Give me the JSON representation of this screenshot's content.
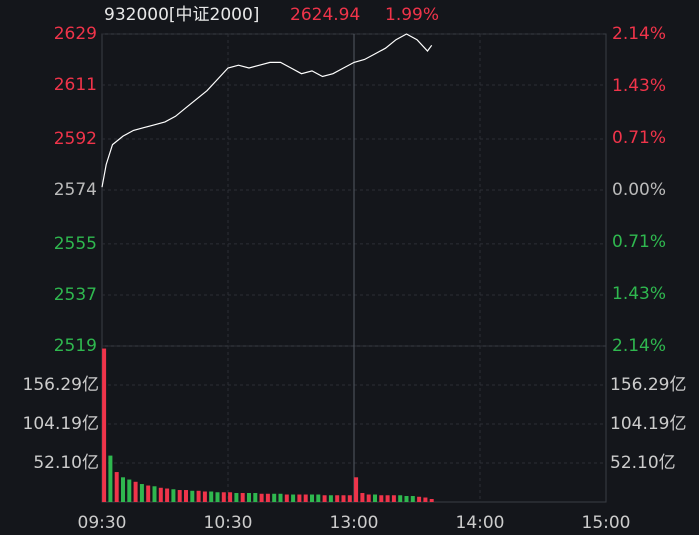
{
  "chart_data": [
    {
      "type": "line",
      "title": "932000[中证2000]",
      "last": 2624.94,
      "change": {
        "value": 1.99,
        "label": "1.99%"
      },
      "up_color": "#f0344a",
      "down_color": "#2fb84f",
      "flat_color": "#bbbbbb",
      "x": [
        0,
        2,
        5,
        10,
        15,
        20,
        25,
        30,
        35,
        40,
        45,
        50,
        55,
        60,
        65,
        70,
        75,
        80,
        85,
        90,
        95,
        100,
        105,
        110,
        115,
        120,
        125,
        130,
        135,
        140,
        145,
        150,
        155,
        157
      ],
      "series": [
        {
          "color": "#ffffff",
          "values": [
            2575,
            2583,
            2590,
            2593,
            2595,
            2596,
            2597,
            2598,
            2600,
            2603,
            2606,
            2609,
            2613,
            2617,
            2618,
            2617,
            2618,
            2619,
            2619,
            2617,
            2615,
            2616,
            2614,
            2615,
            2617,
            2619,
            2620,
            2622,
            2624,
            2627,
            2629,
            2627,
            2623,
            2625
          ]
        }
      ],
      "xlim": [
        0,
        240
      ],
      "ylim": [
        2519,
        2629
      ],
      "yticks": [
        2629,
        2611,
        2592,
        2574,
        2555,
        2537,
        2519
      ],
      "y2lim": [
        -2.14,
        2.14
      ],
      "y2ticks": [
        {
          "value": 2.14,
          "label": "2.14%"
        },
        {
          "value": 1.43,
          "label": "1.43%"
        },
        {
          "value": 0.71,
          "label": "0.71%"
        },
        {
          "value": 0,
          "label": "0.00%"
        },
        {
          "value": -0.71,
          "label": "0.71%"
        },
        {
          "value": -1.43,
          "label": "1.43%"
        },
        {
          "value": -2.14,
          "label": "2.14%"
        }
      ]
    },
    {
      "type": "bar",
      "x": [
        1,
        4,
        7,
        10,
        13,
        16,
        19,
        22,
        25,
        28,
        31,
        34,
        37,
        40,
        43,
        46,
        49,
        52,
        55,
        58,
        61,
        64,
        67,
        70,
        73,
        76,
        79,
        82,
        85,
        88,
        91,
        94,
        97,
        100,
        103,
        106,
        109,
        112,
        115,
        118,
        121,
        124,
        127,
        130,
        133,
        136,
        139,
        142,
        145,
        148,
        151,
        154,
        157
      ],
      "values": [
        205,
        62,
        40,
        33,
        30,
        27,
        24,
        22,
        21,
        19,
        18,
        17,
        16,
        16,
        15,
        15,
        14,
        14,
        13,
        13,
        13,
        12,
        12,
        12,
        12,
        11,
        11,
        11,
        11,
        10,
        10,
        10,
        10,
        10,
        10,
        9,
        9,
        9,
        9,
        9,
        33,
        12,
        10,
        10,
        9,
        9,
        9,
        9,
        8,
        8,
        7,
        6,
        4
      ],
      "colors": [
        "#f0344a",
        "#2fb84f",
        "#f0344a",
        "#2fb84f",
        "#2fb84f",
        "#f0344a",
        "#2fb84f",
        "#f0344a",
        "#2fb84f",
        "#f0344a",
        "#f0344a",
        "#2fb84f",
        "#f0344a",
        "#f0344a",
        "#2fb84f",
        "#f0344a",
        "#f0344a",
        "#2fb84f",
        "#2fb84f",
        "#f0344a",
        "#f0344a",
        "#2fb84f",
        "#f0344a",
        "#2fb84f",
        "#2fb84f",
        "#f0344a",
        "#f0344a",
        "#2fb84f",
        "#2fb84f",
        "#f0344a",
        "#2fb84f",
        "#f0344a",
        "#f0344a",
        "#2fb84f",
        "#2fb84f",
        "#f0344a",
        "#2fb84f",
        "#f0344a",
        "#f0344a",
        "#f0344a",
        "#f0344a",
        "#f0344a",
        "#f0344a",
        "#2fb84f",
        "#f0344a",
        "#f0344a",
        "#f0344a",
        "#2fb84f",
        "#2fb84f",
        "#2fb84f",
        "#f0344a",
        "#f0344a",
        "#f0344a"
      ],
      "xlim": [
        0,
        240
      ],
      "ylim": [
        0,
        208.4
      ],
      "yticks": [
        {
          "value": 156.29,
          "label": "156.29亿"
        },
        {
          "value": 104.19,
          "label": "104.19亿"
        },
        {
          "value": 52.1,
          "label": "52.10亿"
        }
      ],
      "xticks": [
        {
          "value": 0,
          "label": "09:30"
        },
        {
          "value": 60,
          "label": "10:30"
        },
        {
          "value": 120,
          "label": "13:00"
        },
        {
          "value": 180,
          "label": "14:00"
        },
        {
          "value": 240,
          "label": "15:00"
        }
      ]
    }
  ]
}
